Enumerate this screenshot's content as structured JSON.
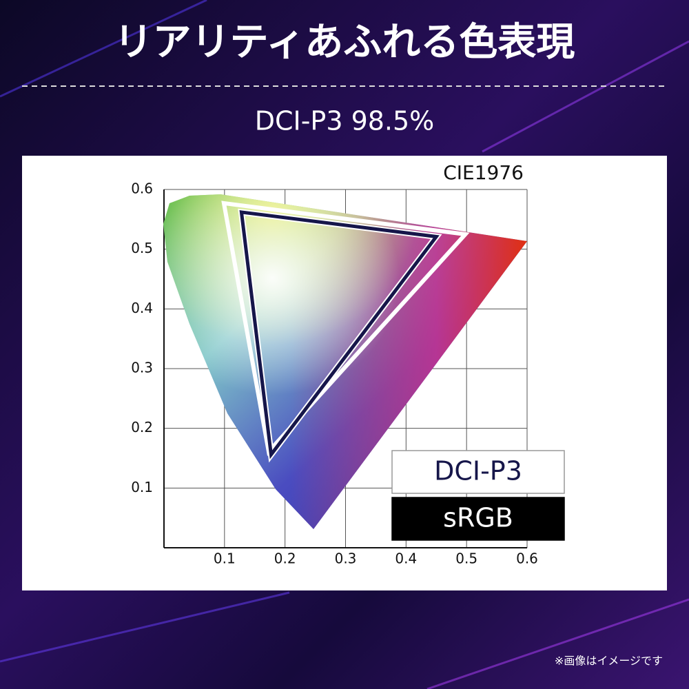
{
  "header": {
    "title": "リアリティあふれる色表現",
    "subtitle": "DCI-P3 98.5%"
  },
  "chart_data": {
    "type": "gamut",
    "title": "CIE1976",
    "xlim": [
      0,
      0.6
    ],
    "ylim": [
      0,
      0.6
    ],
    "xticks": [
      0.1,
      0.2,
      0.3,
      0.4,
      0.5,
      0.6
    ],
    "yticks": [
      0.1,
      0.2,
      0.3,
      0.4,
      0.5,
      0.6
    ],
    "grid": true,
    "legend": "lower right",
    "series": [
      {
        "name": "DCI-P3",
        "color": "#ffffff",
        "x": [
          0.099,
          0.498,
          0.173
        ],
        "values": [
          0.577,
          0.525,
          0.161
        ]
      },
      {
        "name": "sRGB",
        "color": "#16164a",
        "x": [
          0.128,
          0.45,
          0.177
        ],
        "values": [
          0.562,
          0.521,
          0.156
        ]
      }
    ]
  },
  "footer": {
    "note": "※画像はイメージです"
  }
}
